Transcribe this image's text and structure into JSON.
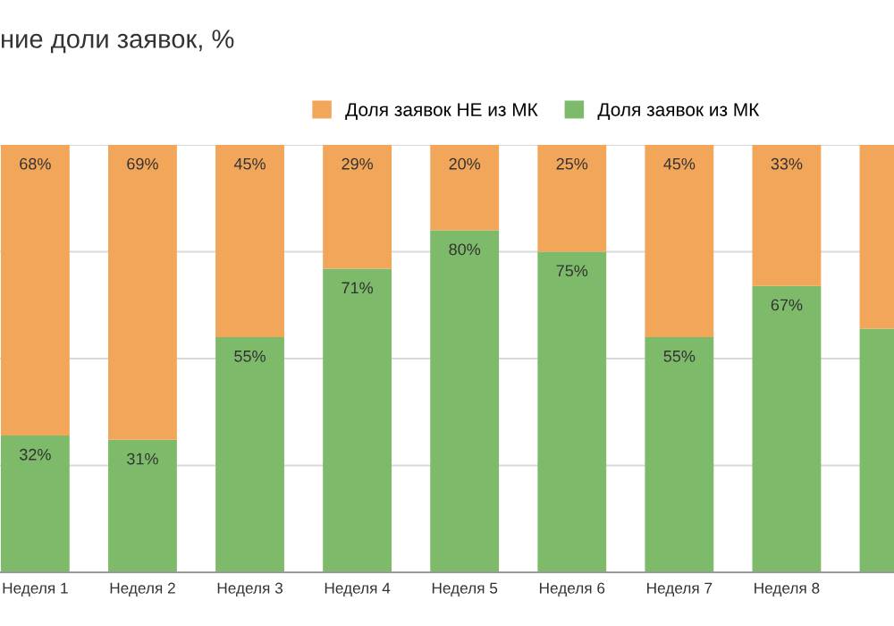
{
  "chart_data": {
    "type": "bar",
    "stacked": true,
    "title": "ние доли заявок, %",
    "categories": [
      "Неделя 1",
      "Неделя 2",
      "Неделя 3",
      "Неделя 4",
      "Неделя 5",
      "Неделя 6",
      "Неделя 7",
      "Неделя 8",
      null
    ],
    "series": [
      {
        "name": "Доля заявок из МК",
        "color": "#7dbb6a",
        "values": [
          32,
          31,
          55,
          71,
          80,
          75,
          55,
          67,
          57
        ],
        "value_labels": [
          "32%",
          "31%",
          "55%",
          "71%",
          "80%",
          "75%",
          "55%",
          "67%",
          null
        ]
      },
      {
        "name": "Доля заявок НЕ из МК",
        "color": "#f2a65a",
        "values": [
          68,
          69,
          45,
          29,
          20,
          25,
          45,
          33,
          43
        ],
        "value_labels": [
          "68%",
          "69%",
          "45%",
          "29%",
          "20%",
          "25%",
          "45%",
          "33%",
          null
        ]
      }
    ],
    "ylim": [
      0,
      100
    ],
    "yticks": [
      {
        "value": 0,
        "label": null
      },
      {
        "value": 25,
        "label": null
      },
      {
        "value": 50,
        "label": null
      },
      {
        "value": 75,
        "label": null
      },
      {
        "value": 100,
        "label": null
      }
    ],
    "tick_labels": "x",
    "grid": "y",
    "legend": "top"
  }
}
